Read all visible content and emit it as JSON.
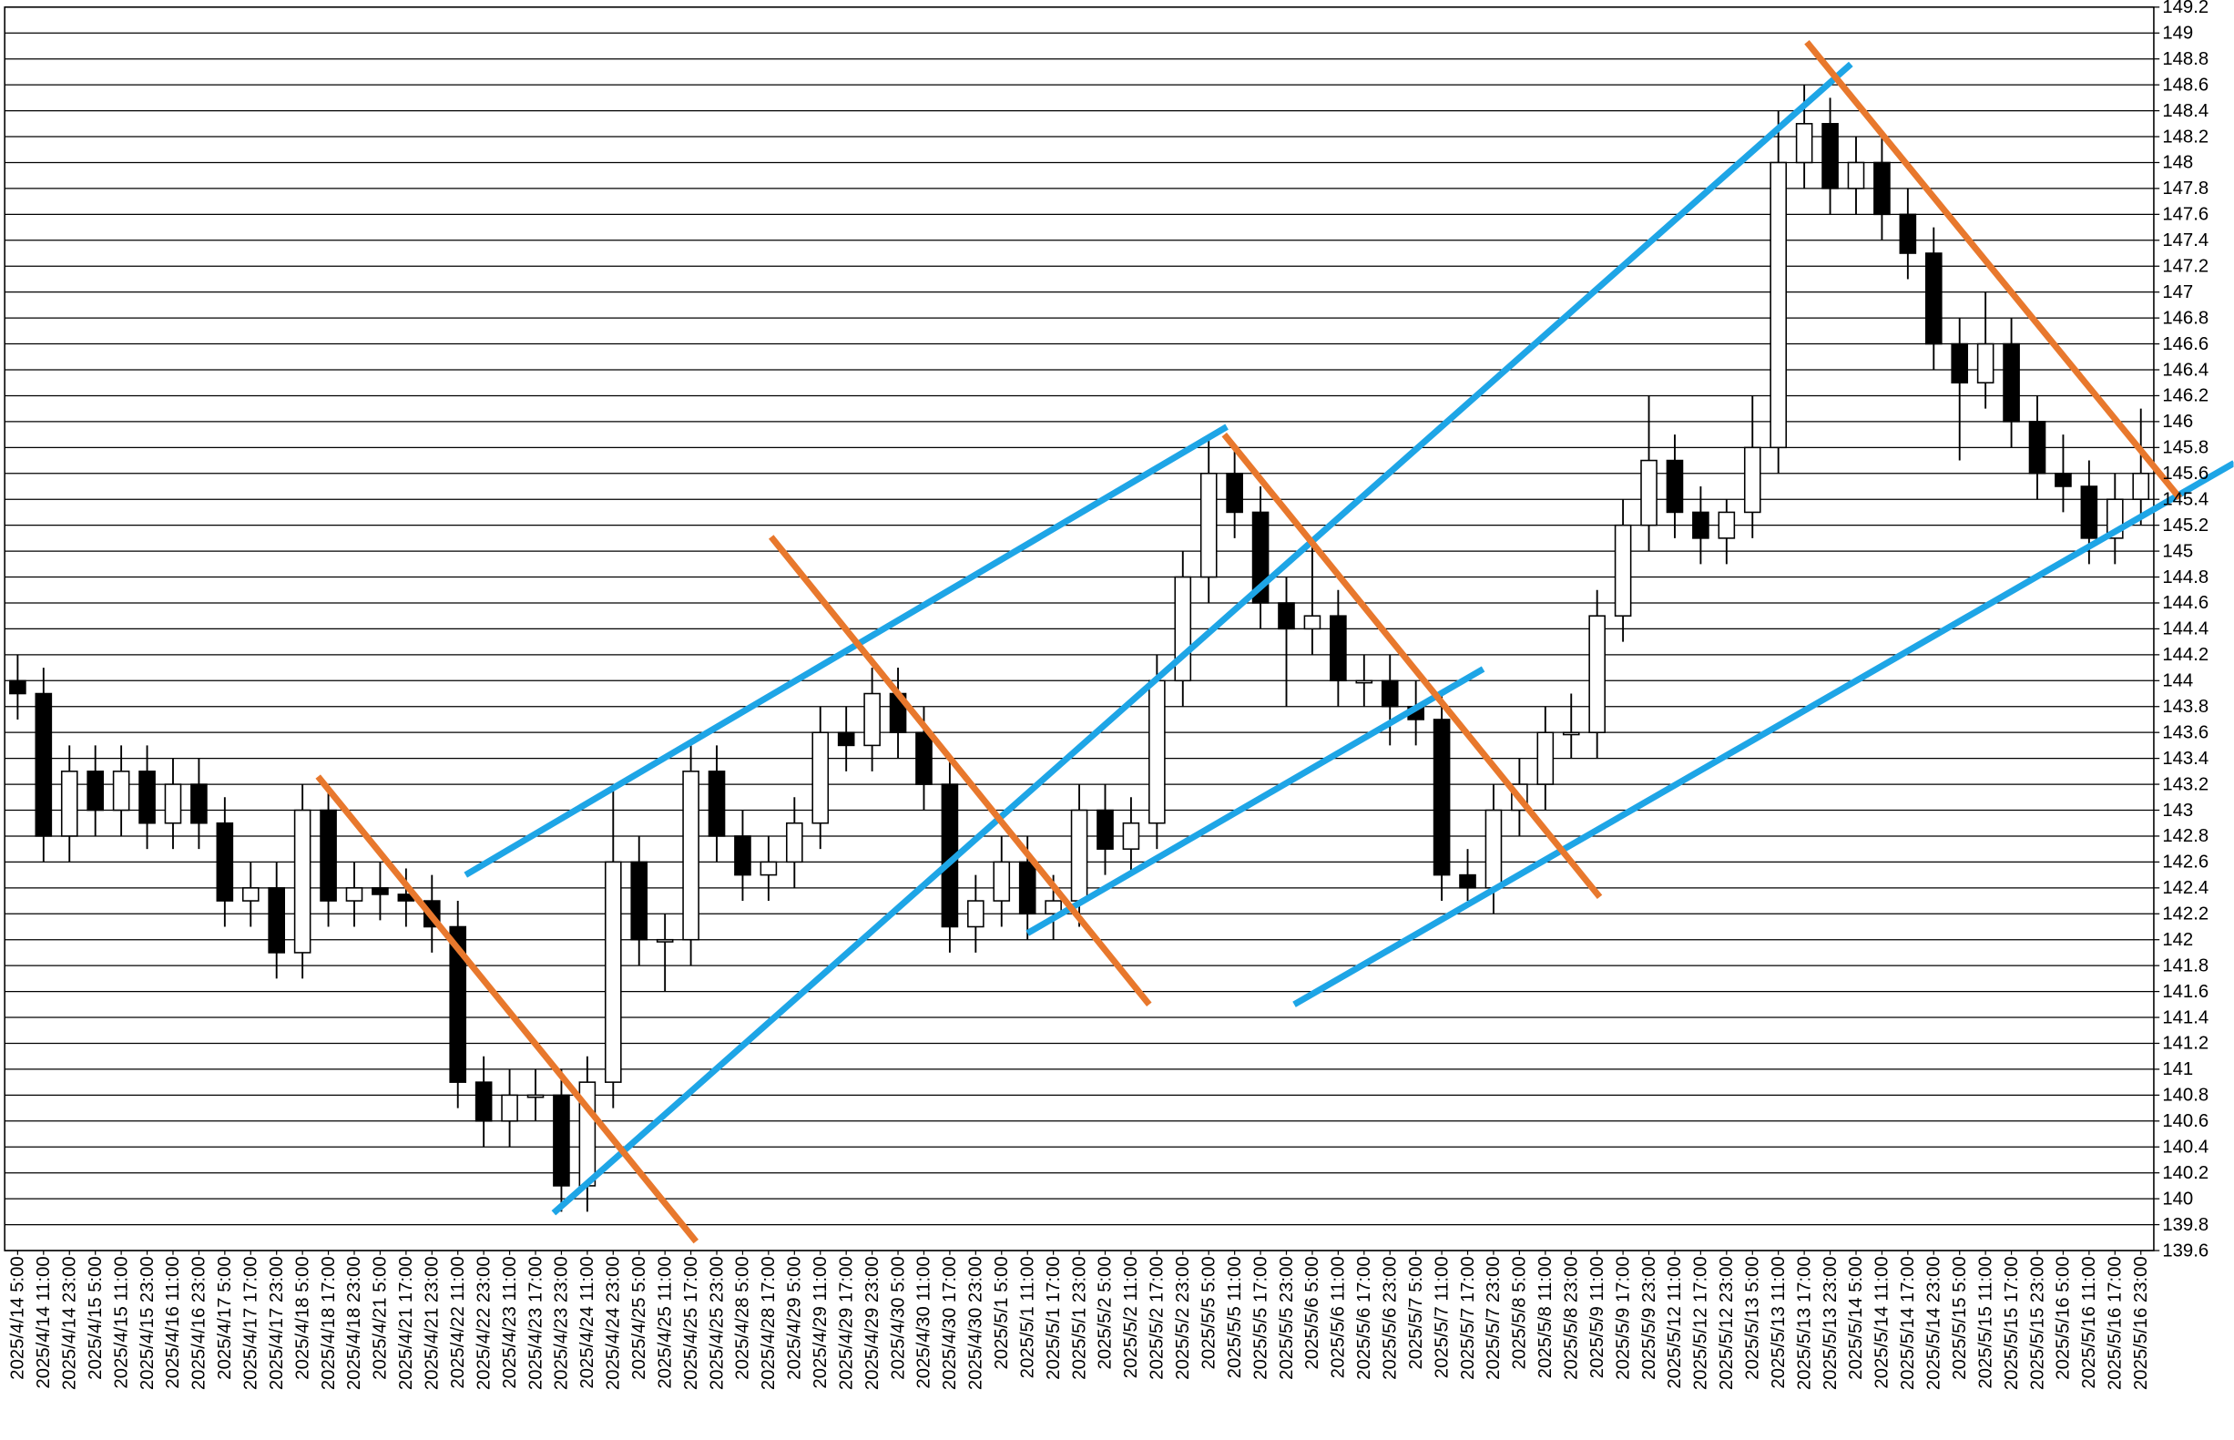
{
  "chart_data": {
    "type": "candlestick",
    "categories": [
      "2025/4/14 5:00",
      "2025/4/14 11:00",
      "2025/4/14 23:00",
      "2025/4/15 5:00",
      "2025/4/15 11:00",
      "2025/4/15 23:00",
      "2025/4/16 11:00",
      "2025/4/16 23:00",
      "2025/4/17 5:00",
      "2025/4/17 17:00",
      "2025/4/17 23:00",
      "2025/4/18 5:00",
      "2025/4/18 17:00",
      "2025/4/18 23:00",
      "2025/4/21 5:00",
      "2025/4/21 17:00",
      "2025/4/21 23:00",
      "2025/4/22 11:00",
      "2025/4/22 23:00",
      "2025/4/23 11:00",
      "2025/4/23 17:00",
      "2025/4/23 23:00",
      "2025/4/24 11:00",
      "2025/4/24 23:00",
      "2025/4/25 5:00",
      "2025/4/25 11:00",
      "2025/4/25 17:00",
      "2025/4/25 23:00",
      "2025/4/28 5:00",
      "2025/4/28 17:00",
      "2025/4/29 5:00",
      "2025/4/29 11:00",
      "2025/4/29 17:00",
      "2025/4/29 23:00",
      "2025/4/30 5:00",
      "2025/4/30 11:00",
      "2025/4/30 17:00",
      "2025/4/30 23:00",
      "2025/5/1 5:00",
      "2025/5/1 11:00",
      "2025/5/1 17:00",
      "2025/5/1 23:00",
      "2025/5/2 5:00",
      "2025/5/2 11:00",
      "2025/5/2 17:00",
      "2025/5/2 23:00",
      "2025/5/5 5:00",
      "2025/5/5 11:00",
      "2025/5/5 17:00",
      "2025/5/5 23:00",
      "2025/5/6 5:00",
      "2025/5/6 11:00",
      "2025/5/6 17:00",
      "2025/5/6 23:00",
      "2025/5/7 5:00",
      "2025/5/7 11:00",
      "2025/5/7 17:00",
      "2025/5/7 23:00",
      "2025/5/8 5:00",
      "2025/5/8 11:00",
      "2025/5/8 23:00",
      "2025/5/9 11:00",
      "2025/5/9 17:00",
      "2025/5/9 23:00",
      "2025/5/12 11:00",
      "2025/5/12 17:00",
      "2025/5/12 23:00",
      "2025/5/13 5:00",
      "2025/5/13 11:00",
      "2025/5/13 17:00",
      "2025/5/13 23:00",
      "2025/5/14 5:00",
      "2025/5/14 11:00",
      "2025/5/14 17:00",
      "2025/5/14 23:00",
      "2025/5/15 5:00",
      "2025/5/15 11:00",
      "2025/5/15 17:00",
      "2025/5/15 23:00",
      "2025/5/16 5:00",
      "2025/5/16 11:00",
      "2025/5/16 17:00",
      "2025/5/16 23:00"
    ],
    "open": [
      144.0,
      143.9,
      142.8,
      143.3,
      143.0,
      143.3,
      142.9,
      143.2,
      142.9,
      142.3,
      142.4,
      141.9,
      143.0,
      142.3,
      142.4,
      142.35,
      142.3,
      142.1,
      140.9,
      140.6,
      140.8,
      140.8,
      140.1,
      140.9,
      142.6,
      142.0,
      142.0,
      143.3,
      142.8,
      142.5,
      142.6,
      142.9,
      143.6,
      143.5,
      143.9,
      143.6,
      143.2,
      142.1,
      142.3,
      142.6,
      142.2,
      142.3,
      143.0,
      142.7,
      142.9,
      144.0,
      144.8,
      145.6,
      145.3,
      144.6,
      144.4,
      144.5,
      144.0,
      144.0,
      143.8,
      143.7,
      142.5,
      142.4,
      143.0,
      143.2,
      143.6,
      143.6,
      144.5,
      145.2,
      145.7,
      145.3,
      145.1,
      145.3,
      145.8,
      148.0,
      148.3,
      147.8,
      148.0,
      147.6,
      147.3,
      146.6,
      146.3,
      146.6,
      146.0,
      145.6,
      145.5,
      145.1,
      145.4
    ],
    "high": [
      144.2,
      144.1,
      143.5,
      143.5,
      143.5,
      143.5,
      143.4,
      143.4,
      143.1,
      142.6,
      142.6,
      143.2,
      143.2,
      142.6,
      142.6,
      142.55,
      142.5,
      142.3,
      141.1,
      141.0,
      141.0,
      141.0,
      141.1,
      143.2,
      142.8,
      142.2,
      143.5,
      143.5,
      143.0,
      142.8,
      143.1,
      143.8,
      143.8,
      144.1,
      144.1,
      143.8,
      143.4,
      142.5,
      142.8,
      142.8,
      142.5,
      143.2,
      143.2,
      143.1,
      144.2,
      145.0,
      145.9,
      145.8,
      145.5,
      144.8,
      145.1,
      144.7,
      144.2,
      144.2,
      144.0,
      143.9,
      142.7,
      143.2,
      143.4,
      143.8,
      143.9,
      144.7,
      145.4,
      146.2,
      145.9,
      145.5,
      145.4,
      146.2,
      148.4,
      148.6,
      148.5,
      148.2,
      148.2,
      147.8,
      147.5,
      146.8,
      147.0,
      146.8,
      146.2,
      145.9,
      145.7,
      145.6,
      146.1
    ],
    "low": [
      143.7,
      142.6,
      142.6,
      142.8,
      142.8,
      142.7,
      142.7,
      142.7,
      142.1,
      142.1,
      141.7,
      141.7,
      142.1,
      142.1,
      142.15,
      142.1,
      141.9,
      140.7,
      140.4,
      140.4,
      140.6,
      139.9,
      139.9,
      140.7,
      141.8,
      141.6,
      141.8,
      142.6,
      142.3,
      142.3,
      142.4,
      142.7,
      143.3,
      143.3,
      143.4,
      143.0,
      141.9,
      141.9,
      142.1,
      142.0,
      142.0,
      142.1,
      142.5,
      142.5,
      142.7,
      143.8,
      144.6,
      145.1,
      144.4,
      143.8,
      144.2,
      143.8,
      143.8,
      143.5,
      143.5,
      142.3,
      142.3,
      142.2,
      142.8,
      143.0,
      143.4,
      143.4,
      144.3,
      145.0,
      145.1,
      144.9,
      144.9,
      145.1,
      145.6,
      147.8,
      147.6,
      147.6,
      147.4,
      147.1,
      146.4,
      145.7,
      146.1,
      145.8,
      145.4,
      145.3,
      144.9,
      144.9,
      145.2
    ],
    "close": [
      143.9,
      142.8,
      143.3,
      143.0,
      143.3,
      142.9,
      143.2,
      142.9,
      142.3,
      142.4,
      141.9,
      143.0,
      142.3,
      142.4,
      142.35,
      142.3,
      142.1,
      140.9,
      140.6,
      140.8,
      140.8,
      140.1,
      140.9,
      142.6,
      142.0,
      142.0,
      143.3,
      142.8,
      142.5,
      142.6,
      142.9,
      143.6,
      143.5,
      143.9,
      143.6,
      143.2,
      142.1,
      142.3,
      142.6,
      142.2,
      142.3,
      143.0,
      142.7,
      142.9,
      144.0,
      144.8,
      145.6,
      145.3,
      144.6,
      144.4,
      144.5,
      144.0,
      144.0,
      143.8,
      143.7,
      142.5,
      142.4,
      143.0,
      143.2,
      143.6,
      143.6,
      144.5,
      145.2,
      145.7,
      145.3,
      145.1,
      145.3,
      145.8,
      148.0,
      148.3,
      147.8,
      148.0,
      147.6,
      147.3,
      146.6,
      146.3,
      146.6,
      146.0,
      145.6,
      145.5,
      145.1,
      145.4,
      145.6
    ],
    "up_color": "#ffffff",
    "down_color": "#000000",
    "ylim": [
      139.6,
      149.2
    ],
    "yticks": [
      139.6,
      139.8,
      140,
      140.2,
      140.4,
      140.6,
      140.8,
      141,
      141.2,
      141.4,
      141.6,
      141.8,
      142,
      142.2,
      142.4,
      142.6,
      142.8,
      143,
      143.2,
      143.4,
      143.6,
      143.8,
      144,
      144.2,
      144.4,
      144.6,
      144.8,
      145,
      145.2,
      145.4,
      145.6,
      145.8,
      146,
      146.2,
      146.4,
      146.6,
      146.8,
      147,
      147.2,
      147.4,
      147.6,
      147.8,
      148,
      148.2,
      148.4,
      148.6,
      148.8,
      149,
      149.2
    ],
    "grid": true,
    "trendlines": [
      {
        "color": "#1ea5e6",
        "points": [
          [
            20.7,
            139.89
          ],
          [
            70.8,
            148.76
          ]
        ]
      },
      {
        "color": "#1ea5e6",
        "points": [
          [
            17.3,
            142.5
          ],
          [
            46.7,
            145.96
          ]
        ]
      },
      {
        "color": "#1ea5e6",
        "points": [
          [
            39.0,
            142.05
          ],
          [
            56.6,
            144.09
          ]
        ]
      },
      {
        "color": "#1ea5e6",
        "points": [
          [
            49.3,
            141.5
          ],
          [
            85.6,
            145.68
          ]
        ]
      },
      {
        "color": "#e8782d",
        "points": [
          [
            11.6,
            143.26
          ],
          [
            26.2,
            139.67
          ]
        ]
      },
      {
        "color": "#e8782d",
        "points": [
          [
            29.1,
            145.11
          ],
          [
            43.7,
            141.5
          ]
        ]
      },
      {
        "color": "#e8782d",
        "points": [
          [
            46.6,
            145.9
          ],
          [
            61.1,
            142.33
          ]
        ]
      },
      {
        "color": "#e8782d",
        "points": [
          [
            69.1,
            148.93
          ],
          [
            83.5,
            145.41
          ]
        ]
      }
    ]
  }
}
